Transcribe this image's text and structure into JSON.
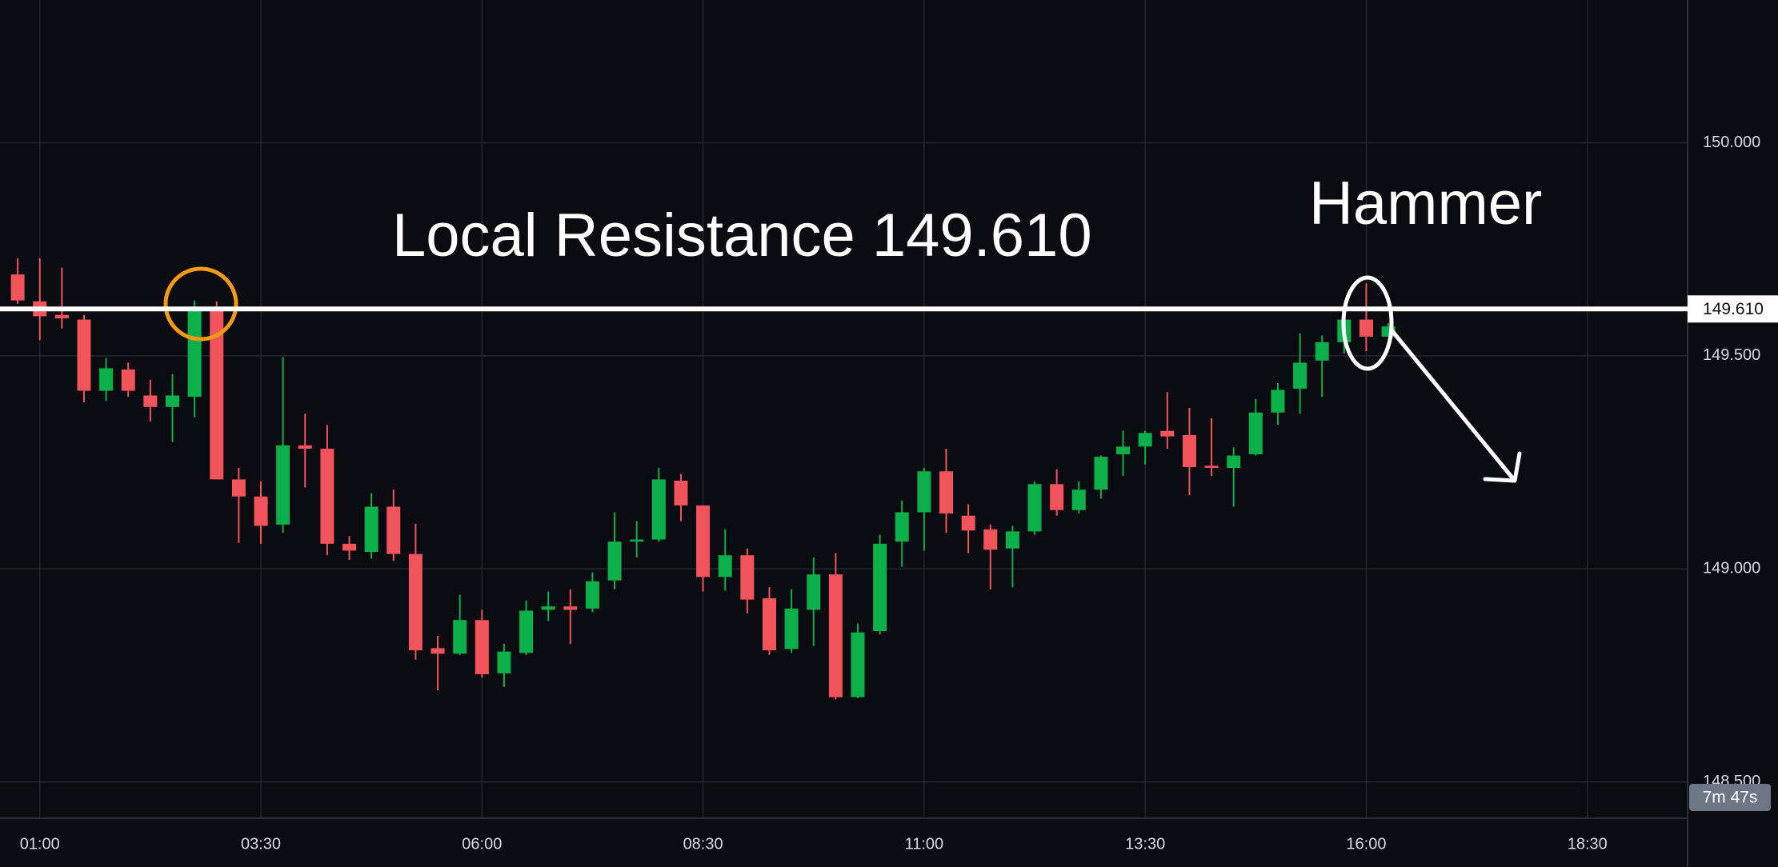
{
  "chart_data": {
    "type": "candlestick",
    "annotations": [
      "Local Resistance 149.610",
      "Hammer"
    ],
    "resistance_level": {
      "value": 149.61,
      "label": "149.610"
    },
    "countdown": "7m 47s",
    "up_color": "#0bb04a",
    "down_color": "#f2545b",
    "grid": true,
    "xlim": [
      "00:33",
      "19:38"
    ],
    "xticks": [
      "01:00",
      "03:30",
      "06:00",
      "08:30",
      "11:00",
      "13:30",
      "16:00",
      "18:30"
    ],
    "ylim": [
      148.415,
      150.335
    ],
    "yticks": [
      {
        "value": 148.5,
        "label": "148.500"
      },
      {
        "value": 149.0,
        "label": "149.000"
      },
      {
        "value": 149.5,
        "label": "149.500"
      },
      {
        "value": 150.0,
        "label": "150.000"
      }
    ],
    "x": [
      "00:45",
      "01:00",
      "01:15",
      "01:30",
      "01:45",
      "02:00",
      "02:15",
      "02:30",
      "02:45",
      "03:00",
      "03:15",
      "03:30",
      "03:45",
      "04:00",
      "04:15",
      "04:30",
      "04:45",
      "05:00",
      "05:15",
      "05:30",
      "05:45",
      "06:00",
      "06:15",
      "06:30",
      "06:45",
      "07:00",
      "07:15",
      "07:30",
      "07:45",
      "08:00",
      "08:15",
      "08:30",
      "08:45",
      "09:00",
      "09:15",
      "09:30",
      "09:45",
      "10:00",
      "10:15",
      "10:30",
      "10:45",
      "11:00",
      "11:15",
      "11:30",
      "11:45",
      "12:00",
      "12:15",
      "12:30",
      "12:45",
      "13:00",
      "13:15",
      "13:30",
      "13:45",
      "14:00",
      "14:15",
      "14:30",
      "14:45",
      "15:00",
      "15:15",
      "15:30",
      "15:45",
      "16:00",
      "16:15"
    ],
    "open": [
      149.691,
      149.628,
      149.596,
      149.585,
      149.418,
      149.468,
      149.407,
      149.38,
      149.404,
      149.612,
      149.21,
      149.17,
      149.104,
      149.29,
      149.282,
      149.059,
      149.04,
      149.146,
      149.035,
      148.814,
      148.801,
      148.88,
      148.755,
      148.803,
      148.904,
      148.912,
      148.907,
      148.973,
      149.064,
      149.069,
      149.207,
      149.149,
      148.981,
      149.032,
      148.931,
      148.812,
      148.904,
      148.987,
      148.699,
      148.854,
      149.064,
      149.133,
      149.229,
      149.125,
      149.093,
      149.048,
      149.088,
      149.199,
      149.138,
      149.186,
      149.269,
      149.287,
      149.324,
      149.314,
      149.242,
      149.237,
      149.269,
      149.367,
      149.423,
      149.489,
      149.532,
      149.585,
      149.545
    ],
    "high": [
      149.729,
      149.729,
      149.707,
      149.596,
      149.495,
      149.484,
      149.444,
      149.457,
      149.63,
      149.628,
      149.237,
      149.205,
      149.497,
      149.364,
      149.338,
      149.077,
      149.178,
      149.186,
      149.106,
      148.843,
      148.939,
      148.904,
      148.824,
      148.926,
      148.947,
      148.952,
      148.992,
      149.133,
      149.112,
      149.237,
      149.223,
      149.149,
      149.093,
      149.048,
      148.957,
      148.952,
      149.027,
      149.037,
      148.872,
      149.08,
      149.16,
      149.237,
      149.282,
      149.152,
      149.104,
      149.101,
      149.205,
      149.234,
      149.205,
      149.266,
      149.324,
      149.324,
      149.415,
      149.378,
      149.354,
      149.285,
      149.399,
      149.436,
      149.553,
      149.548,
      149.59,
      149.67,
      149.577
    ],
    "low": [
      149.622,
      149.537,
      149.564,
      149.391,
      149.394,
      149.404,
      149.346,
      149.298,
      149.356,
      149.21,
      149.061,
      149.059,
      149.085,
      149.191,
      149.032,
      149.021,
      149.024,
      149.019,
      148.787,
      148.715,
      148.798,
      148.745,
      148.723,
      148.798,
      148.878,
      148.824,
      148.899,
      148.952,
      149.027,
      149.064,
      149.112,
      148.947,
      148.949,
      148.896,
      148.798,
      148.803,
      148.819,
      148.694,
      148.697,
      148.846,
      149.005,
      149.043,
      149.085,
      149.037,
      148.952,
      148.957,
      149.08,
      149.125,
      149.13,
      149.165,
      149.218,
      149.245,
      149.282,
      149.173,
      149.218,
      149.146,
      149.266,
      149.338,
      149.364,
      149.404,
      149.505,
      149.511,
      149.545
    ],
    "close": [
      149.63,
      149.593,
      149.588,
      149.418,
      149.471,
      149.418,
      149.38,
      149.407,
      149.609,
      149.21,
      149.17,
      149.101,
      149.29,
      149.282,
      149.059,
      149.043,
      149.146,
      149.035,
      148.809,
      148.801,
      148.88,
      148.753,
      148.806,
      148.902,
      148.912,
      148.904,
      148.971,
      149.064,
      149.069,
      149.21,
      149.149,
      148.981,
      149.032,
      148.928,
      148.809,
      148.907,
      148.987,
      148.699,
      148.851,
      149.059,
      149.133,
      149.229,
      149.13,
      149.09,
      149.045,
      149.088,
      149.199,
      149.138,
      149.186,
      149.263,
      149.287,
      149.319,
      149.311,
      149.239,
      149.237,
      149.266,
      149.367,
      149.42,
      149.484,
      149.532,
      149.585,
      149.545,
      149.569
    ]
  }
}
